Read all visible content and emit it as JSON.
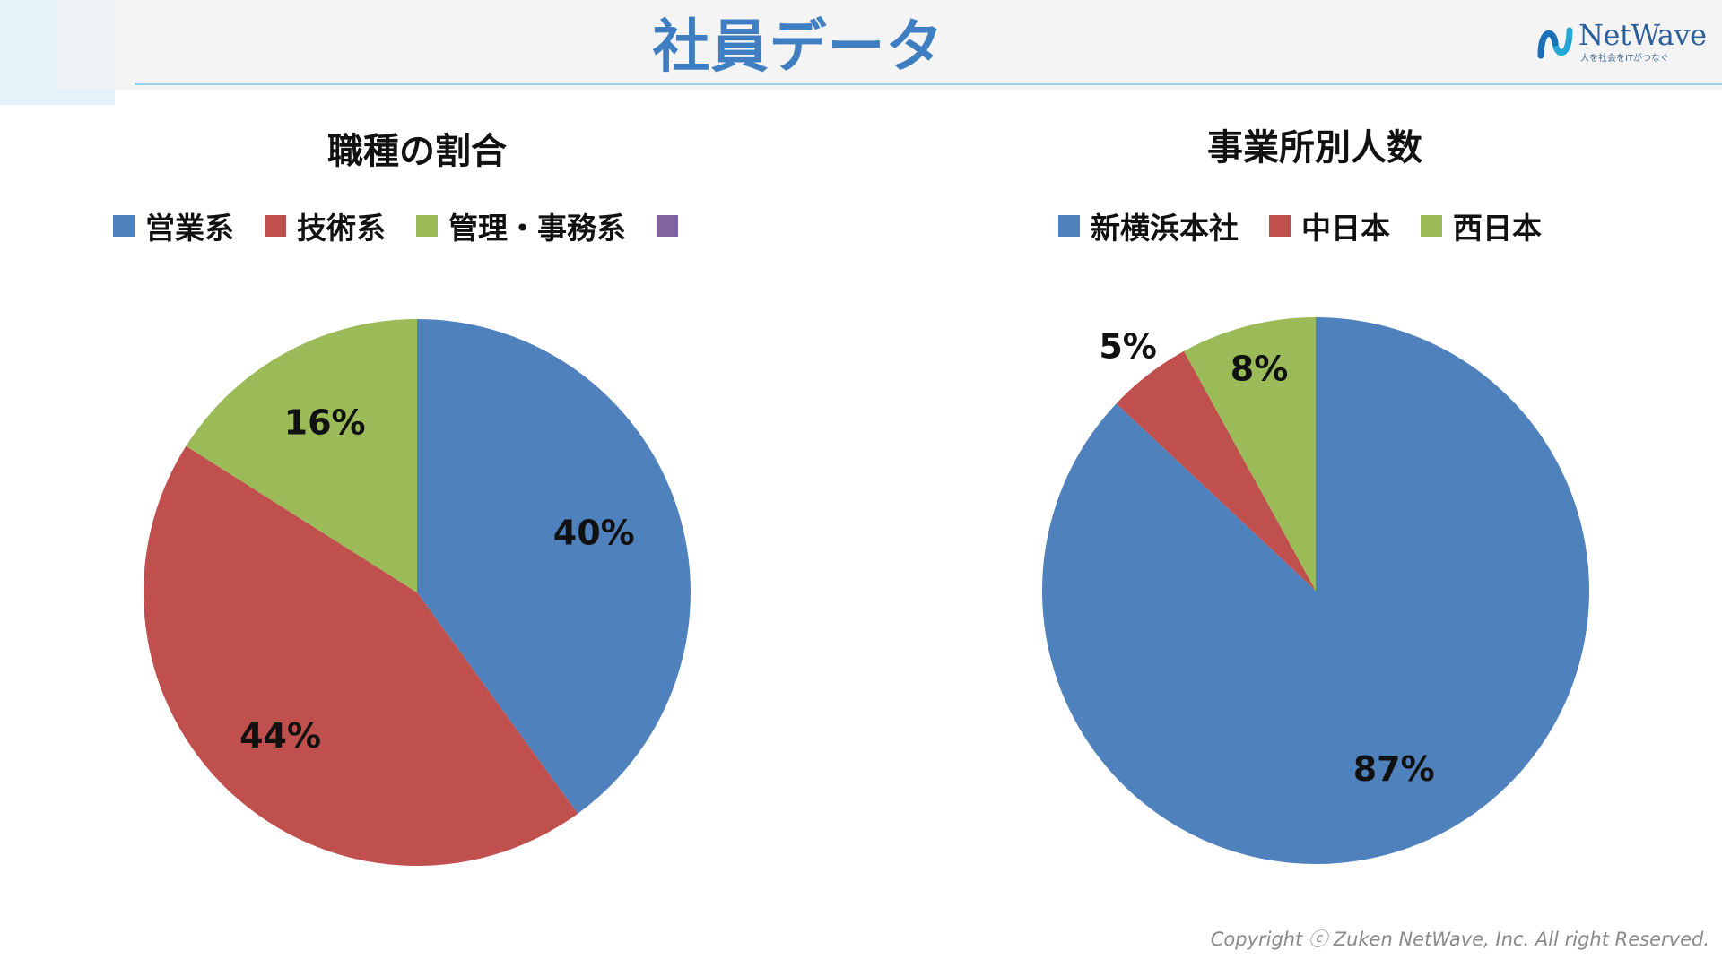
{
  "header": {
    "title": "社員データ",
    "logo_name": "NetWave",
    "logo_tagline": "人を社会をITがつなぐ"
  },
  "footer": {
    "copyright": "Copyright ⓒ Zuken NetWave, Inc. All right Reserved."
  },
  "colors": {
    "blue": "#4f81bd",
    "red": "#c0504d",
    "green": "#9bbb59",
    "purple": "#8064a2",
    "title_blue": "#3f7fc1"
  },
  "chart_data": [
    {
      "type": "pie",
      "title": "職種の割合",
      "legend_position": "top",
      "categories": [
        "営業系",
        "技術系",
        "管理・事務系",
        ""
      ],
      "values": [
        40,
        44,
        16,
        0
      ],
      "labels": [
        "40%",
        "44%",
        "16%",
        ""
      ],
      "colors": [
        "#4f81bd",
        "#c0504d",
        "#9bbb59",
        "#8064a2"
      ]
    },
    {
      "type": "pie",
      "title": "事業所別人数",
      "legend_position": "top",
      "categories": [
        "新横浜本社",
        "中日本",
        "西日本"
      ],
      "values": [
        87,
        5,
        8
      ],
      "labels": [
        "87%",
        "5%",
        "8%"
      ],
      "colors": [
        "#4f81bd",
        "#c0504d",
        "#9bbb59"
      ]
    }
  ]
}
